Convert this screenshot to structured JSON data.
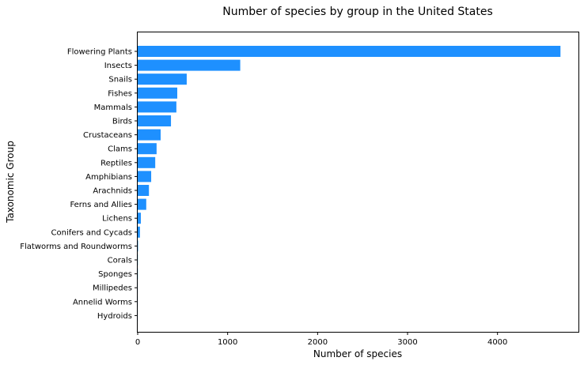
{
  "chart_data": {
    "type": "bar",
    "orientation": "horizontal",
    "title": "Number of species by group in the United States",
    "xlabel": "Number of species",
    "ylabel": "Taxonomic Group",
    "xlim": [
      0,
      4900
    ],
    "xticks": [
      0,
      1000,
      2000,
      3000,
      4000
    ],
    "grid": false,
    "bar_color": "#1e90ff",
    "categories": [
      "Flowering Plants",
      "Insects",
      "Snails",
      "Fishes",
      "Mammals",
      "Birds",
      "Crustaceans",
      "Clams",
      "Reptiles",
      "Amphibians",
      "Arachnids",
      "Ferns and Allies",
      "Lichens",
      "Conifers and Cycads",
      "Flatworms and Roundworms",
      "Corals",
      "Sponges",
      "Millipedes",
      "Annelid Worms",
      "Hydroids"
    ],
    "values": [
      4700,
      1140,
      545,
      440,
      430,
      370,
      255,
      210,
      195,
      150,
      125,
      95,
      35,
      25,
      4,
      2,
      2,
      1,
      1,
      1
    ]
  }
}
